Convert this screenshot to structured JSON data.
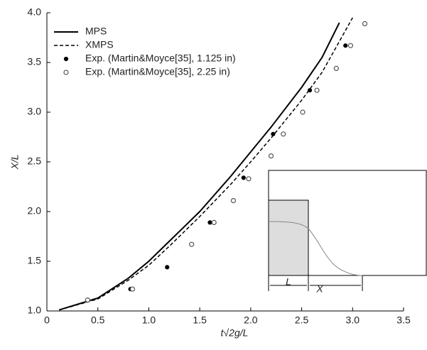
{
  "chart_data": {
    "type": "line",
    "xlabel": "t√2g/L",
    "ylabel": "X/L",
    "xlim": [
      0,
      3.5
    ],
    "ylim": [
      1,
      4
    ],
    "xticks": [
      0,
      0.5,
      {
        "value": 1,
        "label": "1.0"
      },
      1.5,
      {
        "value": 2,
        "label": "2.0"
      },
      2.5,
      {
        "value": 3,
        "label": "3.0"
      },
      3.5
    ],
    "yticks": [
      {
        "value": 1,
        "label": "1.0"
      },
      1.5,
      {
        "value": 2,
        "label": "2.0"
      },
      2.5,
      {
        "value": 3,
        "label": "3.0"
      },
      3.5,
      {
        "value": 4,
        "label": "4.0"
      }
    ],
    "legend": "upper left",
    "series": [
      {
        "name": "MPS",
        "color": "#000000",
        "style": "solid",
        "x": [
          0.12,
          0.5,
          0.8,
          1.0,
          1.2,
          1.5,
          1.8,
          2.0,
          2.2,
          2.5,
          2.7,
          2.87
        ],
        "values": [
          1.01,
          1.13,
          1.33,
          1.5,
          1.7,
          2.0,
          2.35,
          2.6,
          2.85,
          3.25,
          3.55,
          3.9
        ]
      },
      {
        "name": "XMPS",
        "color": "#000000",
        "style": "dashed",
        "x": [
          0.12,
          0.5,
          0.8,
          1.0,
          1.2,
          1.5,
          1.8,
          2.0,
          2.2,
          2.5,
          2.7,
          3.0
        ],
        "values": [
          1.01,
          1.12,
          1.31,
          1.46,
          1.65,
          1.95,
          2.27,
          2.5,
          2.74,
          3.12,
          3.4,
          3.95
        ]
      },
      {
        "name": "Exp. (Martin&Moyce[35], 1.125 in)",
        "color": "#000000",
        "style": "filled",
        "x": [
          0.82,
          1.18,
          1.6,
          1.93,
          2.22,
          2.58,
          2.93
        ],
        "values": [
          1.22,
          1.44,
          1.89,
          2.34,
          2.78,
          3.22,
          3.67
        ]
      },
      {
        "name": "Exp. (Martin&Moyce[35], 2.25 in)",
        "color": "#555555",
        "style": "open",
        "x": [
          0.4,
          0.84,
          1.42,
          1.64,
          1.83,
          1.98,
          2.2,
          2.32,
          2.51,
          2.65,
          2.84,
          2.98,
          3.12
        ],
        "values": [
          1.11,
          1.22,
          1.67,
          1.89,
          2.11,
          2.33,
          2.56,
          2.78,
          3.0,
          3.22,
          3.44,
          3.67,
          3.89
        ]
      }
    ],
    "annotations": [
      "L",
      "X"
    ]
  }
}
